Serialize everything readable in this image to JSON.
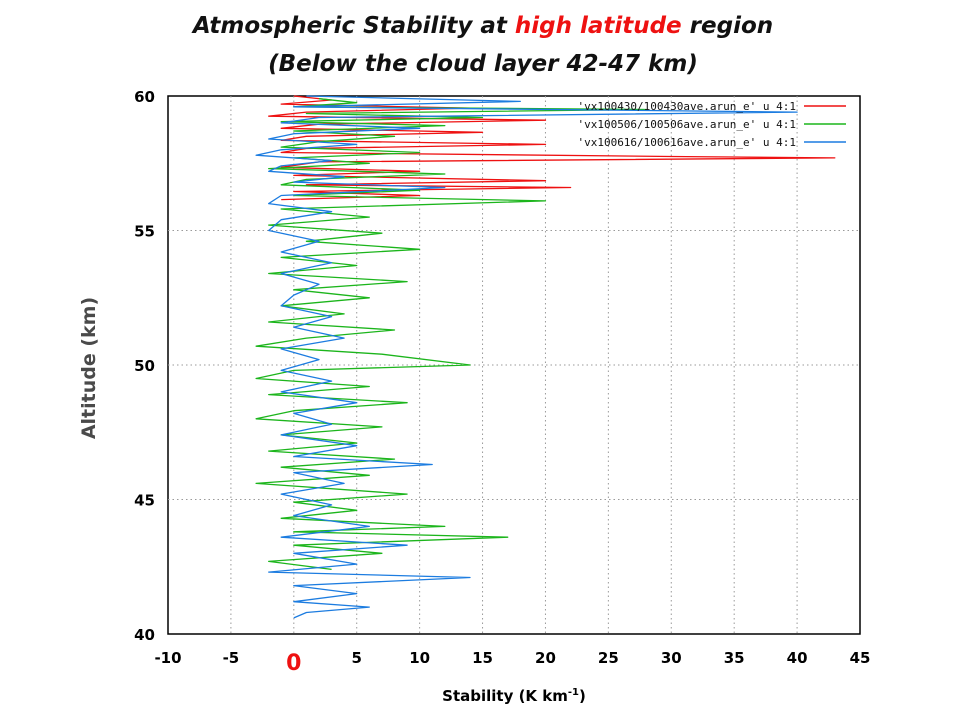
{
  "chart_data": {
    "type": "line",
    "title_parts": [
      "Atmospheric Stability at ",
      "high latitude",
      " region"
    ],
    "subtitle": "(Below the cloud layer 42-47 km)",
    "xlabel_main": "Stability (K km",
    "xlabel_sup": "-1",
    "xlabel_tail": ")",
    "ylabel": "Altitude (km)",
    "xlim": [
      -10,
      45
    ],
    "ylim": [
      40,
      60
    ],
    "x_ticks": [
      "-10",
      "-5",
      "0",
      "5",
      "10",
      "15",
      "20",
      "25",
      "30",
      "35",
      "40",
      "45"
    ],
    "y_ticks": [
      "40",
      "45",
      "50",
      "55",
      "60"
    ],
    "grid": true,
    "legend_position": "top-right",
    "series": [
      {
        "name": "'vx100430/100430ave.arun_e' u 4:1",
        "color": "#ee1111",
        "points": [
          [
            0,
            60.0
          ],
          [
            3,
            59.85
          ],
          [
            -1,
            59.7
          ],
          [
            14,
            59.55
          ],
          [
            1,
            59.4
          ],
          [
            -2,
            59.25
          ],
          [
            20,
            59.1
          ],
          [
            2,
            58.95
          ],
          [
            -1,
            58.8
          ],
          [
            15,
            58.65
          ],
          [
            1,
            58.5
          ],
          [
            -1,
            58.35
          ],
          [
            20,
            58.2
          ],
          [
            1,
            58.05
          ],
          [
            -1,
            57.9
          ],
          [
            30,
            57.75
          ],
          [
            43,
            57.7
          ],
          [
            2,
            57.55
          ],
          [
            -1,
            57.35
          ],
          [
            10,
            57.2
          ],
          [
            0,
            57.05
          ],
          [
            20,
            56.85
          ],
          [
            1,
            56.7
          ],
          [
            22,
            56.6
          ],
          [
            0,
            56.45
          ],
          [
            10,
            56.3
          ],
          [
            -1,
            56.15
          ]
        ]
      },
      {
        "name": "'vx100506/100506ave.arun_e' u 4:1",
        "color": "#1cb51c",
        "points": [
          [
            2,
            59.9
          ],
          [
            5,
            59.75
          ],
          [
            0,
            59.6
          ],
          [
            28,
            59.5
          ],
          [
            1,
            59.35
          ],
          [
            15,
            59.2
          ],
          [
            -1,
            59.05
          ],
          [
            12,
            58.9
          ],
          [
            0,
            58.7
          ],
          [
            8,
            58.5
          ],
          [
            2,
            58.3
          ],
          [
            -1,
            58.1
          ],
          [
            10,
            57.9
          ],
          [
            0,
            57.7
          ],
          [
            6,
            57.5
          ],
          [
            -2,
            57.3
          ],
          [
            12,
            57.1
          ],
          [
            1,
            56.9
          ],
          [
            -1,
            56.7
          ],
          [
            10,
            56.5
          ],
          [
            0,
            56.3
          ],
          [
            20,
            56.1
          ],
          [
            -1,
            55.8
          ],
          [
            6,
            55.5
          ],
          [
            -2,
            55.2
          ],
          [
            7,
            54.9
          ],
          [
            1,
            54.6
          ],
          [
            10,
            54.3
          ],
          [
            -1,
            54.0
          ],
          [
            5,
            53.7
          ],
          [
            -2,
            53.4
          ],
          [
            9,
            53.1
          ],
          [
            0,
            52.8
          ],
          [
            6,
            52.5
          ],
          [
            -1,
            52.2
          ],
          [
            4,
            51.9
          ],
          [
            -2,
            51.6
          ],
          [
            8,
            51.3
          ],
          [
            1,
            51.0
          ],
          [
            -3,
            50.7
          ],
          [
            7,
            50.4
          ],
          [
            14,
            50.0
          ],
          [
            0,
            49.8
          ],
          [
            -3,
            49.5
          ],
          [
            6,
            49.2
          ],
          [
            -2,
            48.9
          ],
          [
            9,
            48.6
          ],
          [
            0,
            48.3
          ],
          [
            -3,
            48.0
          ],
          [
            7,
            47.7
          ],
          [
            -1,
            47.4
          ],
          [
            5,
            47.1
          ],
          [
            -2,
            46.8
          ],
          [
            8,
            46.5
          ],
          [
            -1,
            46.2
          ],
          [
            6,
            45.9
          ],
          [
            -3,
            45.6
          ],
          [
            9,
            45.2
          ],
          [
            0,
            44.9
          ],
          [
            5,
            44.6
          ],
          [
            -1,
            44.3
          ],
          [
            12,
            44.0
          ],
          [
            0,
            43.8
          ],
          [
            17,
            43.6
          ],
          [
            0,
            43.3
          ],
          [
            7,
            43.0
          ],
          [
            -2,
            42.7
          ],
          [
            3,
            42.4
          ]
        ]
      },
      {
        "name": "'vx100616/100616ave.arun_e' u 4:1",
        "color": "#1c7ce0",
        "points": [
          [
            1,
            60.0
          ],
          [
            18,
            59.8
          ],
          [
            0,
            59.6
          ],
          [
            40,
            59.4
          ],
          [
            2,
            59.2
          ],
          [
            -1,
            59.0
          ],
          [
            10,
            58.8
          ],
          [
            0,
            58.6
          ],
          [
            -2,
            58.4
          ],
          [
            5,
            58.2
          ],
          [
            -1,
            58.0
          ],
          [
            -3,
            57.8
          ],
          [
            3,
            57.6
          ],
          [
            -1,
            57.4
          ],
          [
            -2,
            57.2
          ],
          [
            4,
            57.0
          ],
          [
            0,
            56.8
          ],
          [
            12,
            56.6
          ],
          [
            -1,
            56.3
          ],
          [
            -2,
            56.0
          ],
          [
            3,
            55.7
          ],
          [
            -1,
            55.4
          ],
          [
            -2,
            55.0
          ],
          [
            2,
            54.6
          ],
          [
            -1,
            54.2
          ],
          [
            3,
            53.8
          ],
          [
            -1,
            53.4
          ],
          [
            2,
            53.0
          ],
          [
            0,
            52.6
          ],
          [
            -1,
            52.2
          ],
          [
            3,
            51.8
          ],
          [
            0,
            51.4
          ],
          [
            4,
            51.0
          ],
          [
            -1,
            50.6
          ],
          [
            2,
            50.2
          ],
          [
            -1,
            49.8
          ],
          [
            3,
            49.4
          ],
          [
            -1,
            49.0
          ],
          [
            5,
            48.6
          ],
          [
            0,
            48.2
          ],
          [
            3,
            47.8
          ],
          [
            -1,
            47.4
          ],
          [
            5,
            47.0
          ],
          [
            0,
            46.6
          ],
          [
            11,
            46.3
          ],
          [
            0,
            46.0
          ],
          [
            4,
            45.6
          ],
          [
            -1,
            45.2
          ],
          [
            3,
            44.8
          ],
          [
            0,
            44.4
          ],
          [
            6,
            44.0
          ],
          [
            -1,
            43.6
          ],
          [
            9,
            43.3
          ],
          [
            0,
            43.0
          ],
          [
            5,
            42.6
          ],
          [
            -2,
            42.3
          ],
          [
            14,
            42.1
          ],
          [
            0,
            41.8
          ],
          [
            5,
            41.5
          ],
          [
            0,
            41.2
          ],
          [
            6,
            41.0
          ],
          [
            1,
            40.8
          ],
          [
            0,
            40.6
          ]
        ]
      }
    ]
  }
}
